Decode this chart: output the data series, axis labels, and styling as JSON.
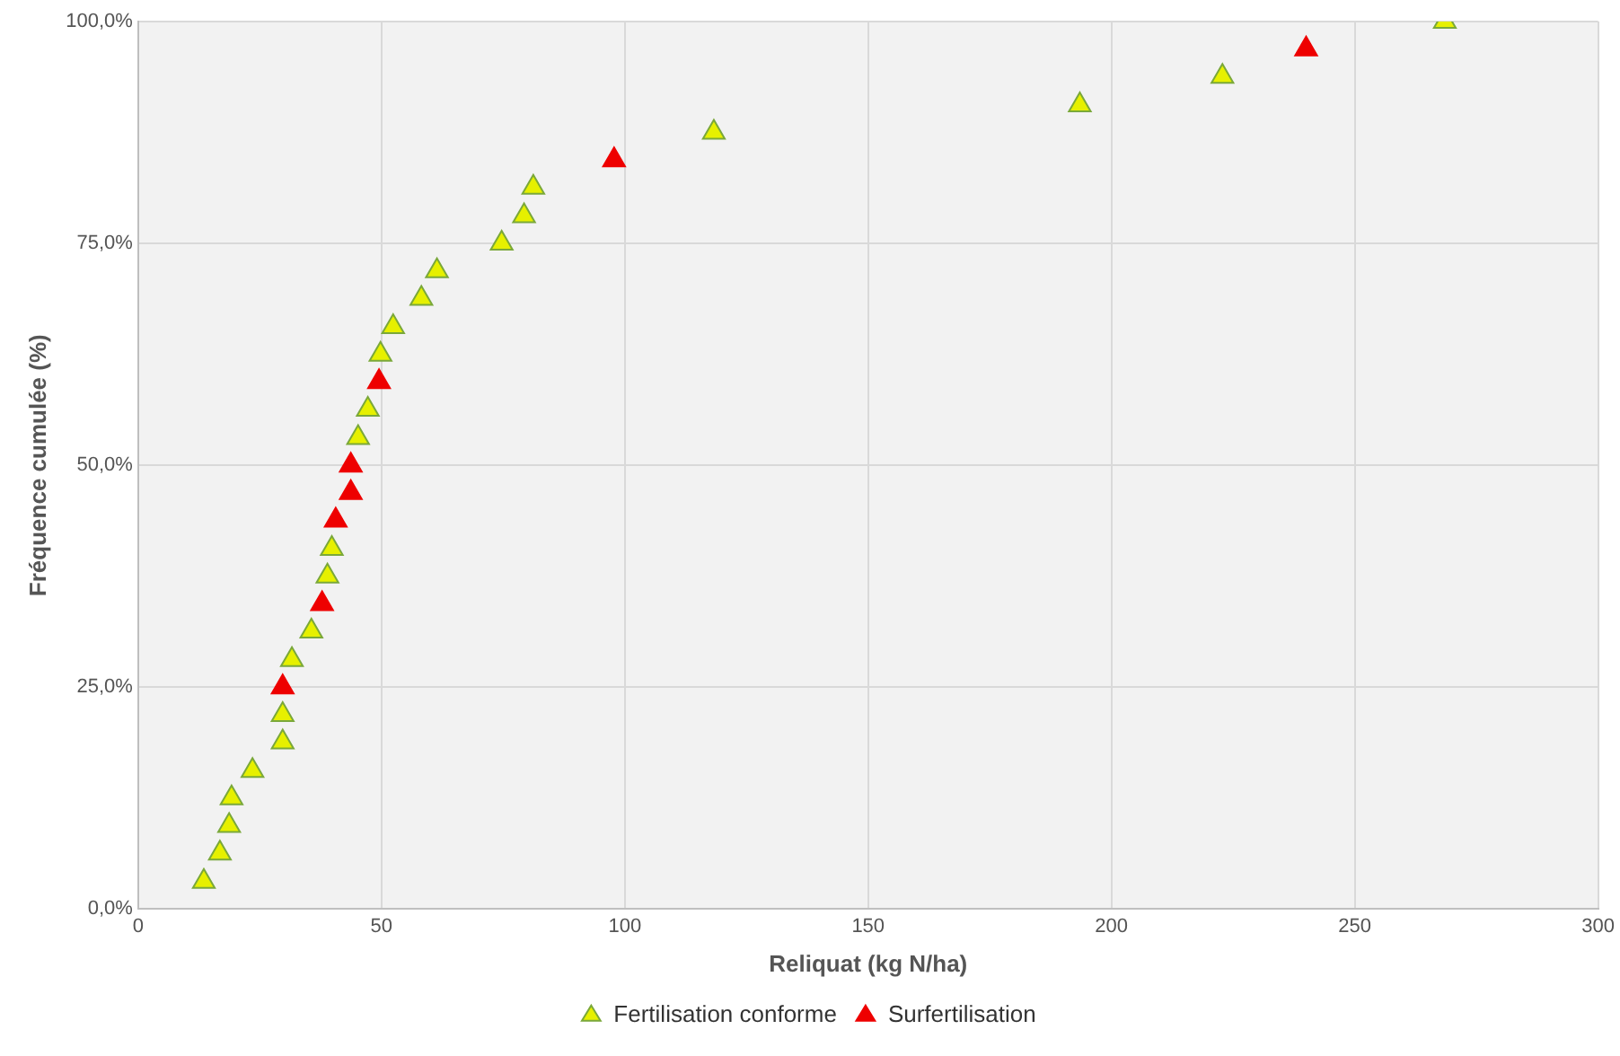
{
  "chart_data": {
    "type": "scatter",
    "xlabel": "Reliquat (kg N/ha)",
    "ylabel": "Fréquence cumulée (%)",
    "xlim": [
      0,
      300
    ],
    "xticks": [
      0,
      50,
      100,
      150,
      200,
      250,
      300
    ],
    "ylim": [
      0,
      100
    ],
    "yticks": [
      {
        "value": 0,
        "label": "0,0%"
      },
      {
        "value": 25,
        "label": "25,0%"
      },
      {
        "value": 50,
        "label": "50,0%"
      },
      {
        "value": 75,
        "label": "75,0%"
      },
      {
        "value": 100,
        "label": "100,0%"
      }
    ],
    "grid": true,
    "legend": "bottom",
    "marker": "triangle",
    "series": [
      {
        "name": "Fertilisation conforme",
        "color": "#e6f000",
        "x": [
          13.5,
          16.8,
          18.7,
          19.2,
          23.5,
          29.7,
          29.7,
          31.6,
          35.6,
          38.9,
          39.8,
          45.2,
          47.2,
          49.8,
          52.4,
          58.2,
          61.4,
          74.7,
          79.3,
          81.2,
          118.3,
          193.5,
          222.8,
          268.5
        ],
        "values": [
          3.1,
          6.3,
          9.4,
          12.5,
          15.6,
          18.8,
          21.9,
          28.1,
          31.3,
          37.5,
          40.6,
          53.1,
          56.3,
          62.5,
          65.6,
          68.8,
          71.9,
          75,
          78.1,
          81.3,
          87.5,
          90.6,
          93.8,
          100
        ]
      },
      {
        "name": "Surfertilisation",
        "color": "#ee0000",
        "x": [
          29.7,
          37.8,
          40.6,
          43.7,
          43.7,
          49.5,
          97.8,
          240
        ],
        "values": [
          25,
          34.4,
          43.8,
          46.9,
          50,
          59.4,
          84.4,
          96.9
        ]
      }
    ]
  }
}
